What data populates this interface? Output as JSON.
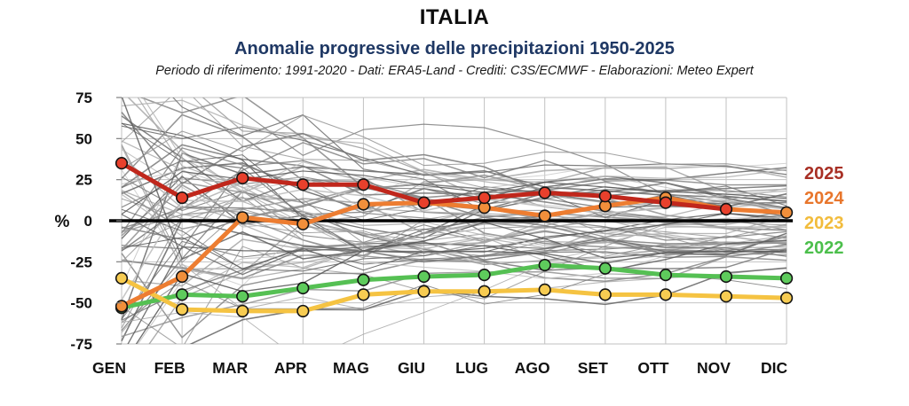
{
  "header": {
    "title": "ITALIA",
    "subtitle": "Anomalie progressive delle precipitazioni 1950-2025",
    "credits": "Periodo di riferimento: 1991-2020 - Dati: ERA5-Land - Crediti: C3S/ECMWF - Elaborazioni: Meteo Expert",
    "subtitle_color": "#1f3864"
  },
  "chart_data": {
    "type": "line",
    "categories": [
      "GEN",
      "FEB",
      "MAR",
      "APR",
      "MAG",
      "GIU",
      "LUG",
      "AGO",
      "SET",
      "OTT",
      "NOV",
      "DIC"
    ],
    "series": [
      {
        "name": "2022",
        "line_color": "#55c053",
        "marker_color": "#5ecb5c",
        "label_color": "#4cbf4c",
        "values": [
          -53,
          -45,
          -46,
          -41,
          -36,
          -34,
          -33,
          -27,
          -29,
          -33,
          -34,
          -35
        ]
      },
      {
        "name": "2023",
        "line_color": "#f5c342",
        "marker_color": "#f7cc52",
        "label_color": "#f2bc3c",
        "values": [
          -35,
          -54,
          -55,
          -55,
          -45,
          -43,
          -43,
          -42,
          -45,
          -45,
          -46,
          -47
        ]
      },
      {
        "name": "2024",
        "line_color": "#ed7d31",
        "marker_color": "#f18f3b",
        "label_color": "#e8762c",
        "values": [
          -52,
          -34,
          2,
          -2,
          10,
          11,
          8,
          3,
          9,
          14,
          7,
          5
        ]
      },
      {
        "name": "2025",
        "line_color": "#c0271c",
        "marker_color": "#e8402c",
        "label_color": "#a83025",
        "values": [
          35,
          14,
          26,
          22,
          22,
          11,
          14,
          17,
          15,
          11,
          7,
          null
        ]
      }
    ],
    "legend_order": [
      "2025",
      "2024",
      "2023",
      "2022"
    ],
    "legend_position": "right",
    "background_series": {
      "description": "individual years 1950-2021 in gray",
      "count": 72
    },
    "ylabel": "%",
    "ylim": [
      -75,
      75
    ],
    "yticks": [
      75,
      50,
      25,
      0,
      -25,
      -50,
      -75
    ],
    "zero_line": true,
    "grid": true,
    "grid_color": "#c2c2c2"
  }
}
